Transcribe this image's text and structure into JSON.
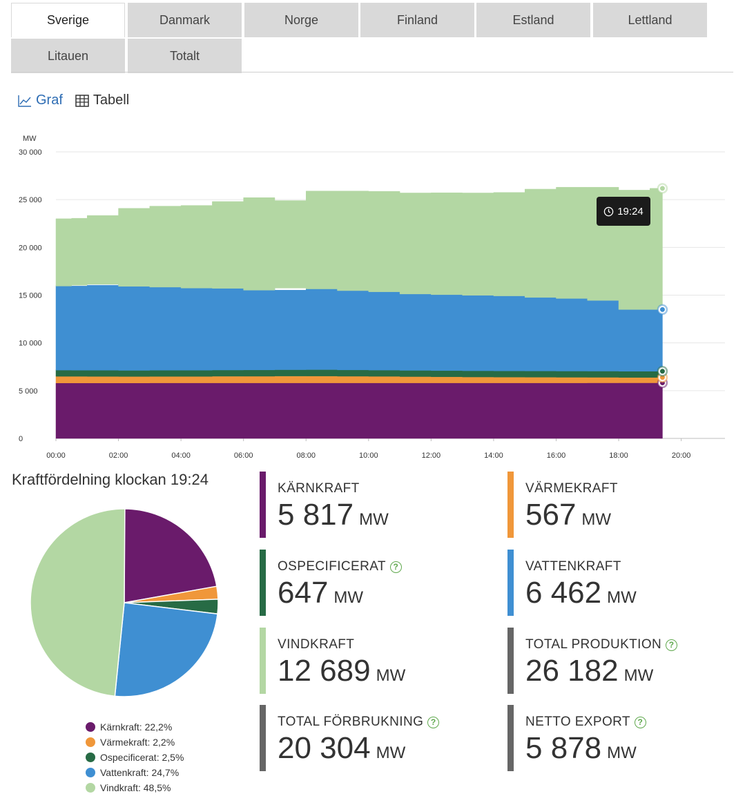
{
  "tabs": [
    {
      "label": "Sverige",
      "active": true
    },
    {
      "label": "Danmark",
      "active": false
    },
    {
      "label": "Norge",
      "active": false
    },
    {
      "label": "Finland",
      "active": false
    },
    {
      "label": "Estland",
      "active": false
    },
    {
      "label": "Lettland",
      "active": false
    },
    {
      "label": "Litauen",
      "active": false
    },
    {
      "label": "Totalt",
      "active": false
    }
  ],
  "view_toggle": {
    "graph_label": "Graf",
    "table_label": "Tabell",
    "active": "graph"
  },
  "tooltip_time": "19:24",
  "colors": {
    "karnkraft": "#6a1b6b",
    "varmekraft": "#f0973a",
    "ospecificerat": "#276b45",
    "vattenkraft": "#3f8fd2",
    "vindkraft": "#b3d7a3",
    "neutral": "#666666",
    "accent": "#2e6db4",
    "help": "#5fa84d"
  },
  "chart_data": {
    "type": "area",
    "stacked": true,
    "step": true,
    "ylabel": "MW",
    "ylim": [
      0,
      30000
    ],
    "yticks": [
      0,
      5000,
      10000,
      15000,
      20000,
      25000,
      30000
    ],
    "ytick_labels": [
      "0",
      "5 000",
      "10 000",
      "15 000",
      "20 000",
      "25 000",
      "30 000"
    ],
    "xlim": [
      "00:00",
      "21:24"
    ],
    "xtick_labels": [
      "00:00",
      "02:00",
      "04:00",
      "06:00",
      "08:00",
      "10:00",
      "12:00",
      "14:00",
      "16:00",
      "18:00",
      "20:00"
    ],
    "grid": true,
    "x": [
      "00:00",
      "00:30",
      "01:00",
      "02:00",
      "03:00",
      "04:00",
      "05:00",
      "06:00",
      "07:00",
      "08:00",
      "09:00",
      "10:00",
      "11:00",
      "12:00",
      "13:00",
      "14:00",
      "15:00",
      "16:00",
      "17:00",
      "18:00",
      "19:00",
      "19:24"
    ],
    "series": [
      {
        "name": "Kärnkraft",
        "color_key": "karnkraft",
        "values": [
          5800,
          5800,
          5800,
          5800,
          5800,
          5810,
          5810,
          5810,
          5810,
          5810,
          5810,
          5810,
          5810,
          5810,
          5810,
          5810,
          5810,
          5810,
          5810,
          5815,
          5817,
          5817
        ]
      },
      {
        "name": "Värmekraft",
        "color_key": "varmekraft",
        "values": [
          750,
          700,
          700,
          690,
          680,
          680,
          680,
          700,
          700,
          720,
          720,
          700,
          690,
          660,
          640,
          620,
          610,
          600,
          590,
          580,
          567,
          567
        ]
      },
      {
        "name": "Ospecificerat",
        "color_key": "ospecificerat",
        "values": [
          650,
          650,
          640,
          650,
          640,
          650,
          650,
          650,
          660,
          660,
          670,
          660,
          650,
          650,
          650,
          650,
          650,
          650,
          650,
          650,
          647,
          647
        ]
      },
      {
        "name": "Vattenkraft",
        "color_key": "vattenkraft",
        "values": [
          8800,
          8800,
          8900,
          9000,
          8800,
          8700,
          8600,
          8550,
          8350,
          8550,
          8450,
          8300,
          8200,
          8000,
          7950,
          7900,
          7850,
          7700,
          7600,
          7400,
          6462,
          6462
        ]
      },
      {
        "name": "Vindkraft",
        "color_key": "vindkraft",
        "values": [
          7000,
          7100,
          7300,
          7950,
          8400,
          8550,
          9060,
          9500,
          9380,
          10160,
          10250,
          10400,
          10350,
          10600,
          10650,
          10770,
          11180,
          11540,
          11650,
          11550,
          12689,
          12689
        ]
      }
    ]
  },
  "pie": {
    "title": "Kraftfördelning klockan 19:24",
    "slices": [
      {
        "name": "Kärnkraft",
        "percent": 22.2,
        "color_key": "karnkraft",
        "label": "Kärnkraft: 22,2%"
      },
      {
        "name": "Värmekraft",
        "percent": 2.2,
        "color_key": "varmekraft",
        "label": "Värmekraft: 2,2%"
      },
      {
        "name": "Ospecificerat",
        "percent": 2.5,
        "color_key": "ospecificerat",
        "label": "Ospecificerat: 2,5%"
      },
      {
        "name": "Vattenkraft",
        "percent": 24.7,
        "color_key": "vattenkraft",
        "label": "Vattenkraft: 24,7%"
      },
      {
        "name": "Vindkraft",
        "percent": 48.5,
        "color_key": "vindkraft",
        "label": "Vindkraft: 48,5%"
      }
    ]
  },
  "stats": [
    {
      "label": "KÄRNKRAFT",
      "value": "5 817",
      "unit": "MW",
      "color_key": "karnkraft",
      "help": false
    },
    {
      "label": "VÄRMEKRAFT",
      "value": "567",
      "unit": "MW",
      "color_key": "varmekraft",
      "help": false
    },
    {
      "label": "OSPECIFICERAT",
      "value": "647",
      "unit": "MW",
      "color_key": "ospecificerat",
      "help": true
    },
    {
      "label": "VATTENKRAFT",
      "value": "6 462",
      "unit": "MW",
      "color_key": "vattenkraft",
      "help": false
    },
    {
      "label": "VINDKRAFT",
      "value": "12 689",
      "unit": "MW",
      "color_key": "vindkraft",
      "help": false
    },
    {
      "label": "TOTAL PRODUKTION",
      "value": "26 182",
      "unit": "MW",
      "color_key": "neutral",
      "help": true
    },
    {
      "label": "TOTAL FÖRBRUKNING",
      "value": "20 304",
      "unit": "MW",
      "color_key": "neutral",
      "help": true
    },
    {
      "label": "NETTO EXPORT",
      "value": "5 878",
      "unit": "MW",
      "color_key": "neutral",
      "help": true
    }
  ]
}
